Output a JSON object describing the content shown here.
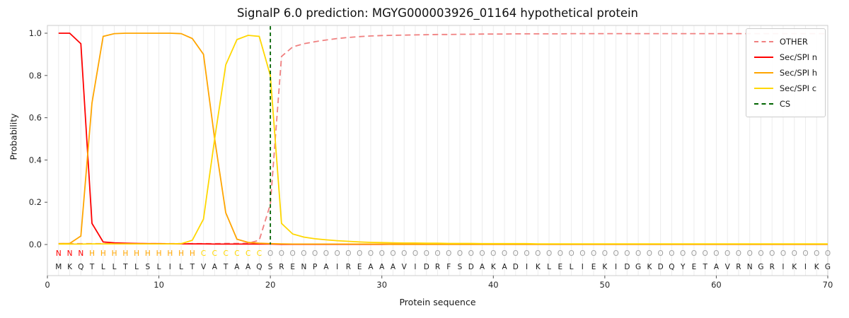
{
  "title": "SignalP 6.0 prediction: MGYG000003926_01164 hypothetical protein",
  "xlabel": "Protein sequence",
  "ylabel": "Probability",
  "colors": {
    "other": "#f08080",
    "n": "#ff0000",
    "h": "#ffa500",
    "c": "#ffd700",
    "cs": "#006400",
    "annotation_o": "#a0a0a0",
    "sequence_text": "#1a1a1a",
    "grid": "#ececec",
    "frame": "#cccccc"
  },
  "legend": {
    "items": [
      {
        "label": "OTHER",
        "series": "other",
        "dashed": true
      },
      {
        "label": "Sec/SPI n",
        "series": "n",
        "dashed": false
      },
      {
        "label": "Sec/SPI h",
        "series": "h",
        "dashed": false
      },
      {
        "label": "Sec/SPI c",
        "series": "c",
        "dashed": false
      },
      {
        "label": "CS",
        "series": "cs",
        "dashed": true
      }
    ]
  },
  "chart_data": {
    "type": "line",
    "title": "SignalP 6.0 prediction: MGYG000003926_01164 hypothetical protein",
    "xlabel": "Protein sequence",
    "ylabel": "Probability",
    "ylim": [
      0,
      1
    ],
    "x_max": 70,
    "x_ticks": [
      0,
      10,
      20,
      30,
      40,
      50,
      60,
      70
    ],
    "y_ticks": [
      0.0,
      0.2,
      0.4,
      0.6,
      0.8,
      1.0
    ],
    "cs_position": 20,
    "sequence": "MKQTLLTLSLILTVATAAQSRENPAIREAAAVIDRFSDAKADIKLELIEKIDGKDQYETAVRNGRIKIKG",
    "annotation": "NNNHHHHHHHHHHCCCCCCOOOOOOOOOOOOOOOOOOOOOOOOOOOOOOOOOOOOOOOOOOOOOOOOOOO",
    "series": [
      {
        "id": "other",
        "name": "OTHER",
        "dashed": true,
        "values": [
          0.004,
          0.004,
          0.004,
          0.004,
          0.004,
          0.004,
          0.004,
          0.004,
          0.004,
          0.004,
          0.004,
          0.004,
          0.004,
          0.004,
          0.004,
          0.005,
          0.005,
          0.006,
          0.02,
          0.19,
          0.89,
          0.935,
          0.95,
          0.96,
          0.968,
          0.975,
          0.98,
          0.984,
          0.987,
          0.989,
          0.99,
          0.991,
          0.992,
          0.993,
          0.994,
          0.994,
          0.995,
          0.995,
          0.996,
          0.996,
          0.996,
          0.997,
          0.997,
          0.997,
          0.997,
          0.997,
          0.998,
          0.998,
          0.998,
          0.998,
          0.998,
          0.998,
          0.998,
          0.998,
          0.998,
          0.998,
          0.998,
          0.998,
          0.998,
          0.998,
          0.998,
          0.998,
          0.998,
          0.998,
          0.998,
          0.998,
          0.998,
          0.998,
          0.998,
          0.998
        ]
      },
      {
        "id": "n",
        "name": "Sec/SPI n",
        "dashed": false,
        "values": [
          1.0,
          1.0,
          0.95,
          0.1,
          0.012,
          0.008,
          0.006,
          0.005,
          0.004,
          0.004,
          0.003,
          0.003,
          0.003,
          0.003,
          0.002,
          0.002,
          0.002,
          0.002,
          0.002,
          0.002,
          0.001,
          0.001,
          0.001,
          0.001,
          0.001,
          0.001,
          0.001,
          0.001,
          0.001,
          0.001,
          0.001,
          0.001,
          0.001,
          0.001,
          0.001,
          0.001,
          0.001,
          0.001,
          0.001,
          0.001,
          0.001,
          0.001,
          0.001,
          0.001,
          0.001,
          0.001,
          0.001,
          0.001,
          0.001,
          0.001,
          0.001,
          0.001,
          0.001,
          0.001,
          0.001,
          0.001,
          0.001,
          0.001,
          0.001,
          0.001,
          0.001,
          0.001,
          0.001,
          0.001,
          0.001,
          0.001,
          0.001,
          0.001,
          0.001,
          0.001
        ]
      },
      {
        "id": "h",
        "name": "Sec/SPI h",
        "dashed": false,
        "values": [
          0.004,
          0.005,
          0.04,
          0.67,
          0.985,
          0.998,
          1.0,
          1.0,
          1.0,
          1.0,
          1.0,
          0.998,
          0.975,
          0.9,
          0.5,
          0.15,
          0.025,
          0.01,
          0.006,
          0.004,
          0.003,
          0.002,
          0.002,
          0.002,
          0.002,
          0.002,
          0.002,
          0.002,
          0.002,
          0.002,
          0.001,
          0.001,
          0.001,
          0.001,
          0.001,
          0.001,
          0.001,
          0.001,
          0.001,
          0.001,
          0.001,
          0.001,
          0.001,
          0.001,
          0.001,
          0.001,
          0.001,
          0.001,
          0.001,
          0.001,
          0.001,
          0.001,
          0.001,
          0.001,
          0.001,
          0.001,
          0.001,
          0.001,
          0.001,
          0.001,
          0.001,
          0.001,
          0.001,
          0.001,
          0.001,
          0.001,
          0.001,
          0.001,
          0.001,
          0.001
        ]
      },
      {
        "id": "c",
        "name": "Sec/SPI c",
        "dashed": false,
        "values": [
          0.002,
          0.002,
          0.002,
          0.003,
          0.003,
          0.003,
          0.003,
          0.003,
          0.003,
          0.003,
          0.003,
          0.004,
          0.02,
          0.12,
          0.5,
          0.85,
          0.97,
          0.99,
          0.985,
          0.8,
          0.1,
          0.05,
          0.035,
          0.027,
          0.022,
          0.018,
          0.015,
          0.012,
          0.01,
          0.009,
          0.008,
          0.007,
          0.007,
          0.006,
          0.006,
          0.005,
          0.005,
          0.005,
          0.004,
          0.004,
          0.004,
          0.004,
          0.004,
          0.003,
          0.003,
          0.003,
          0.003,
          0.003,
          0.003,
          0.003,
          0.003,
          0.003,
          0.003,
          0.003,
          0.003,
          0.003,
          0.003,
          0.003,
          0.003,
          0.003,
          0.003,
          0.003,
          0.003,
          0.003,
          0.003,
          0.003,
          0.003,
          0.003,
          0.003,
          0.003
        ]
      }
    ]
  }
}
